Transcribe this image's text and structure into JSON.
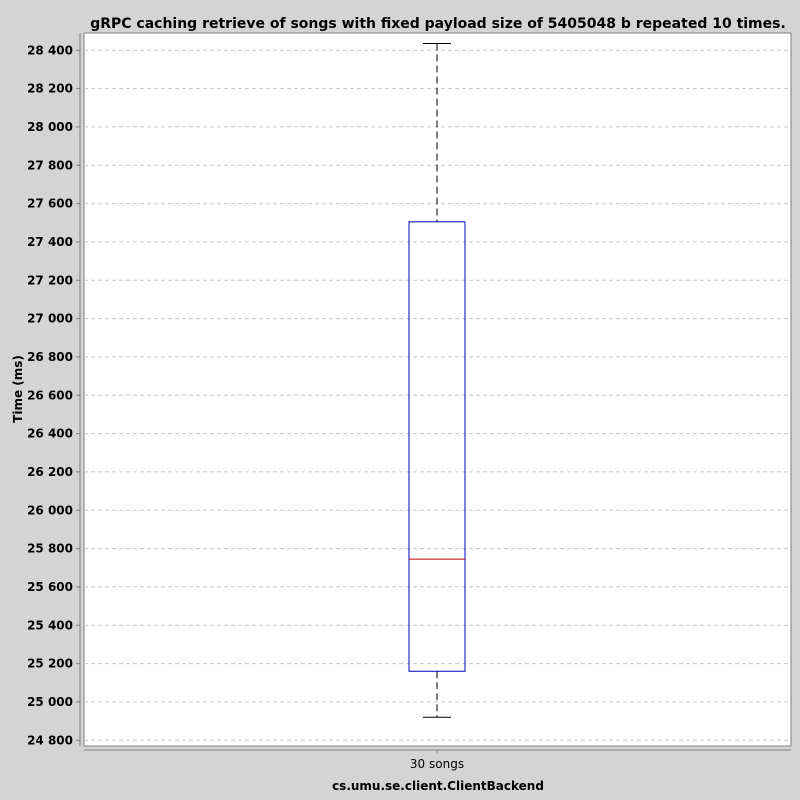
{
  "chart_data": {
    "type": "boxplot",
    "title": "gRPC caching retrieve of songs with fixed payload size of 5405048 b repeated 10 times.",
    "xlabel": "cs.umu.se.client.ClientBackend",
    "ylabel": "Time (ms)",
    "ylim": [
      24770,
      28490
    ],
    "yticks": [
      24800,
      25000,
      25200,
      25400,
      25600,
      25800,
      26000,
      26200,
      26400,
      26600,
      26800,
      27000,
      27200,
      27400,
      27600,
      27800,
      28000,
      28200,
      28400
    ],
    "ytick_labels": [
      "24 800",
      "25 000",
      "25 200",
      "25 400",
      "25 600",
      "25 800",
      "26 000",
      "26 200",
      "26 400",
      "26 600",
      "26 800",
      "27 000",
      "27 200",
      "27 400",
      "27 600",
      "27 800",
      "28 000",
      "28 200",
      "28 400"
    ],
    "grid": true,
    "categories": [
      "30 songs"
    ],
    "boxes": [
      {
        "category": "30 songs",
        "min": 24920,
        "q1": 25160,
        "median": 25745,
        "q3": 27505,
        "max": 28435
      }
    ],
    "colors": {
      "background": "#d4d4d4",
      "plot_background": "#ffffff",
      "box": "#0000c0",
      "median": "#c00000",
      "whisker": "#000000",
      "grid": "#c8c8c8"
    }
  }
}
